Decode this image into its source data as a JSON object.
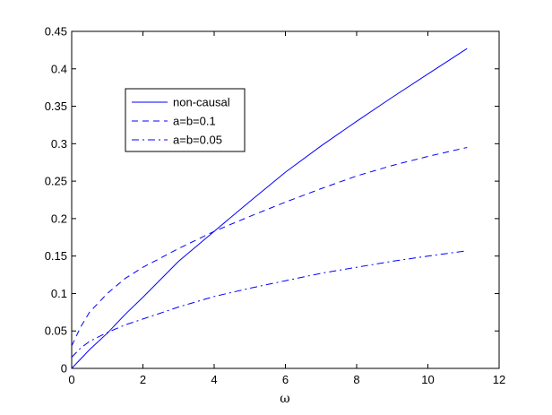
{
  "chart_data": {
    "type": "line",
    "title": "",
    "xlabel": "ω",
    "ylabel": "",
    "xlim": [
      0,
      12
    ],
    "ylim": [
      0,
      0.45
    ],
    "xticks": [
      0,
      2,
      4,
      6,
      8,
      10,
      12
    ],
    "yticks": [
      0,
      0.05,
      0.1,
      0.15,
      0.2,
      0.25,
      0.3,
      0.35,
      0.4,
      0.45
    ],
    "grid": false,
    "legend_position": "upper-left inside axes",
    "series": [
      {
        "name": "non-causal",
        "style": "solid",
        "color": "#0000ff",
        "x": [
          0,
          0.5,
          1,
          1.5,
          2,
          3,
          4,
          5,
          6,
          7,
          8,
          9,
          10,
          11.1
        ],
        "y": [
          0,
          0.025,
          0.047,
          0.072,
          0.095,
          0.143,
          0.183,
          0.223,
          0.262,
          0.297,
          0.33,
          0.362,
          0.393,
          0.427
        ]
      },
      {
        "name": "a=b=0.1",
        "style": "dashed",
        "color": "#0000ff",
        "x": [
          0,
          0.25,
          0.5,
          1,
          1.5,
          2,
          3,
          4,
          5,
          6,
          7,
          8,
          9,
          10,
          11.1
        ],
        "y": [
          0.03,
          0.055,
          0.075,
          0.1,
          0.12,
          0.135,
          0.16,
          0.183,
          0.203,
          0.222,
          0.24,
          0.257,
          0.271,
          0.283,
          0.295
        ]
      },
      {
        "name": "a=b=0.05",
        "style": "dashdot",
        "color": "#0000ff",
        "x": [
          0,
          0.25,
          0.5,
          1,
          1.5,
          2,
          3,
          4,
          5,
          6,
          7,
          8,
          9,
          10,
          11.1
        ],
        "y": [
          0.015,
          0.027,
          0.036,
          0.048,
          0.058,
          0.066,
          0.082,
          0.096,
          0.107,
          0.117,
          0.127,
          0.135,
          0.143,
          0.15,
          0.157
        ]
      }
    ]
  }
}
